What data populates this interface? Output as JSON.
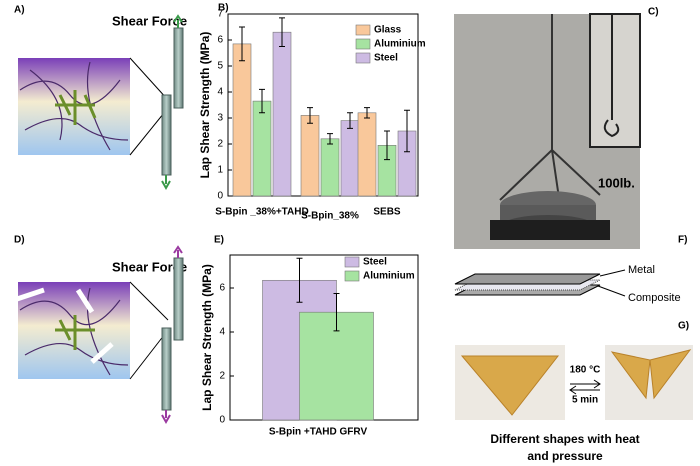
{
  "panels": {
    "a": "A)",
    "b": "B)",
    "c": "C)",
    "d": "D)",
    "e": "E)",
    "f": "F)",
    "g": "G)"
  },
  "annotations": {
    "shear_force_top": "Shear Force",
    "shear_force_bottom": "Shear Force",
    "weight": "100lb.",
    "metal": "Metal",
    "composite": "Composite",
    "temperature": "180 °C",
    "time": "5 min",
    "caption_lines": [
      "Different shapes with heat",
      "and pressure"
    ]
  },
  "chart_data": [
    {
      "type": "bar",
      "y_label": "Lap Shear Strength (MPa)",
      "categories": [
        "S-Bpin _38%+TAHD",
        "S-Bpin_38%",
        "SEBS"
      ],
      "series": [
        {
          "name": "Glass",
          "color": "#f9c89b",
          "values": [
            5.85,
            3.1,
            3.2
          ],
          "errors": [
            0.65,
            0.3,
            0.2
          ]
        },
        {
          "name": "Aluminium",
          "color": "#a6e3a1",
          "values": [
            3.65,
            2.2,
            1.95
          ],
          "errors": [
            0.45,
            0.2,
            0.55
          ]
        },
        {
          "name": "Steel",
          "color": "#cdbbe3",
          "values": [
            6.3,
            2.9,
            2.5
          ],
          "errors": [
            0.55,
            0.3,
            0.8
          ]
        }
      ],
      "ylim": [
        0,
        7
      ],
      "yticks": [
        0,
        1,
        2,
        3,
        4,
        5,
        6,
        7
      ],
      "legend": "upper right"
    },
    {
      "type": "bar",
      "y_label": "Lap Shear Strength (MPa)",
      "categories": [
        "S-Bpin +TAHD GFRV"
      ],
      "series": [
        {
          "name": "Steel",
          "color": "#cdbbe3",
          "values": [
            6.35
          ],
          "errors": [
            1.0
          ]
        },
        {
          "name": "Aluminium",
          "color": "#a6e3a1",
          "values": [
            4.9
          ],
          "errors": [
            0.85
          ]
        }
      ],
      "ylim": [
        0,
        7.5
      ],
      "yticks": [
        0,
        2,
        4,
        6
      ],
      "legend": "upper right"
    }
  ]
}
